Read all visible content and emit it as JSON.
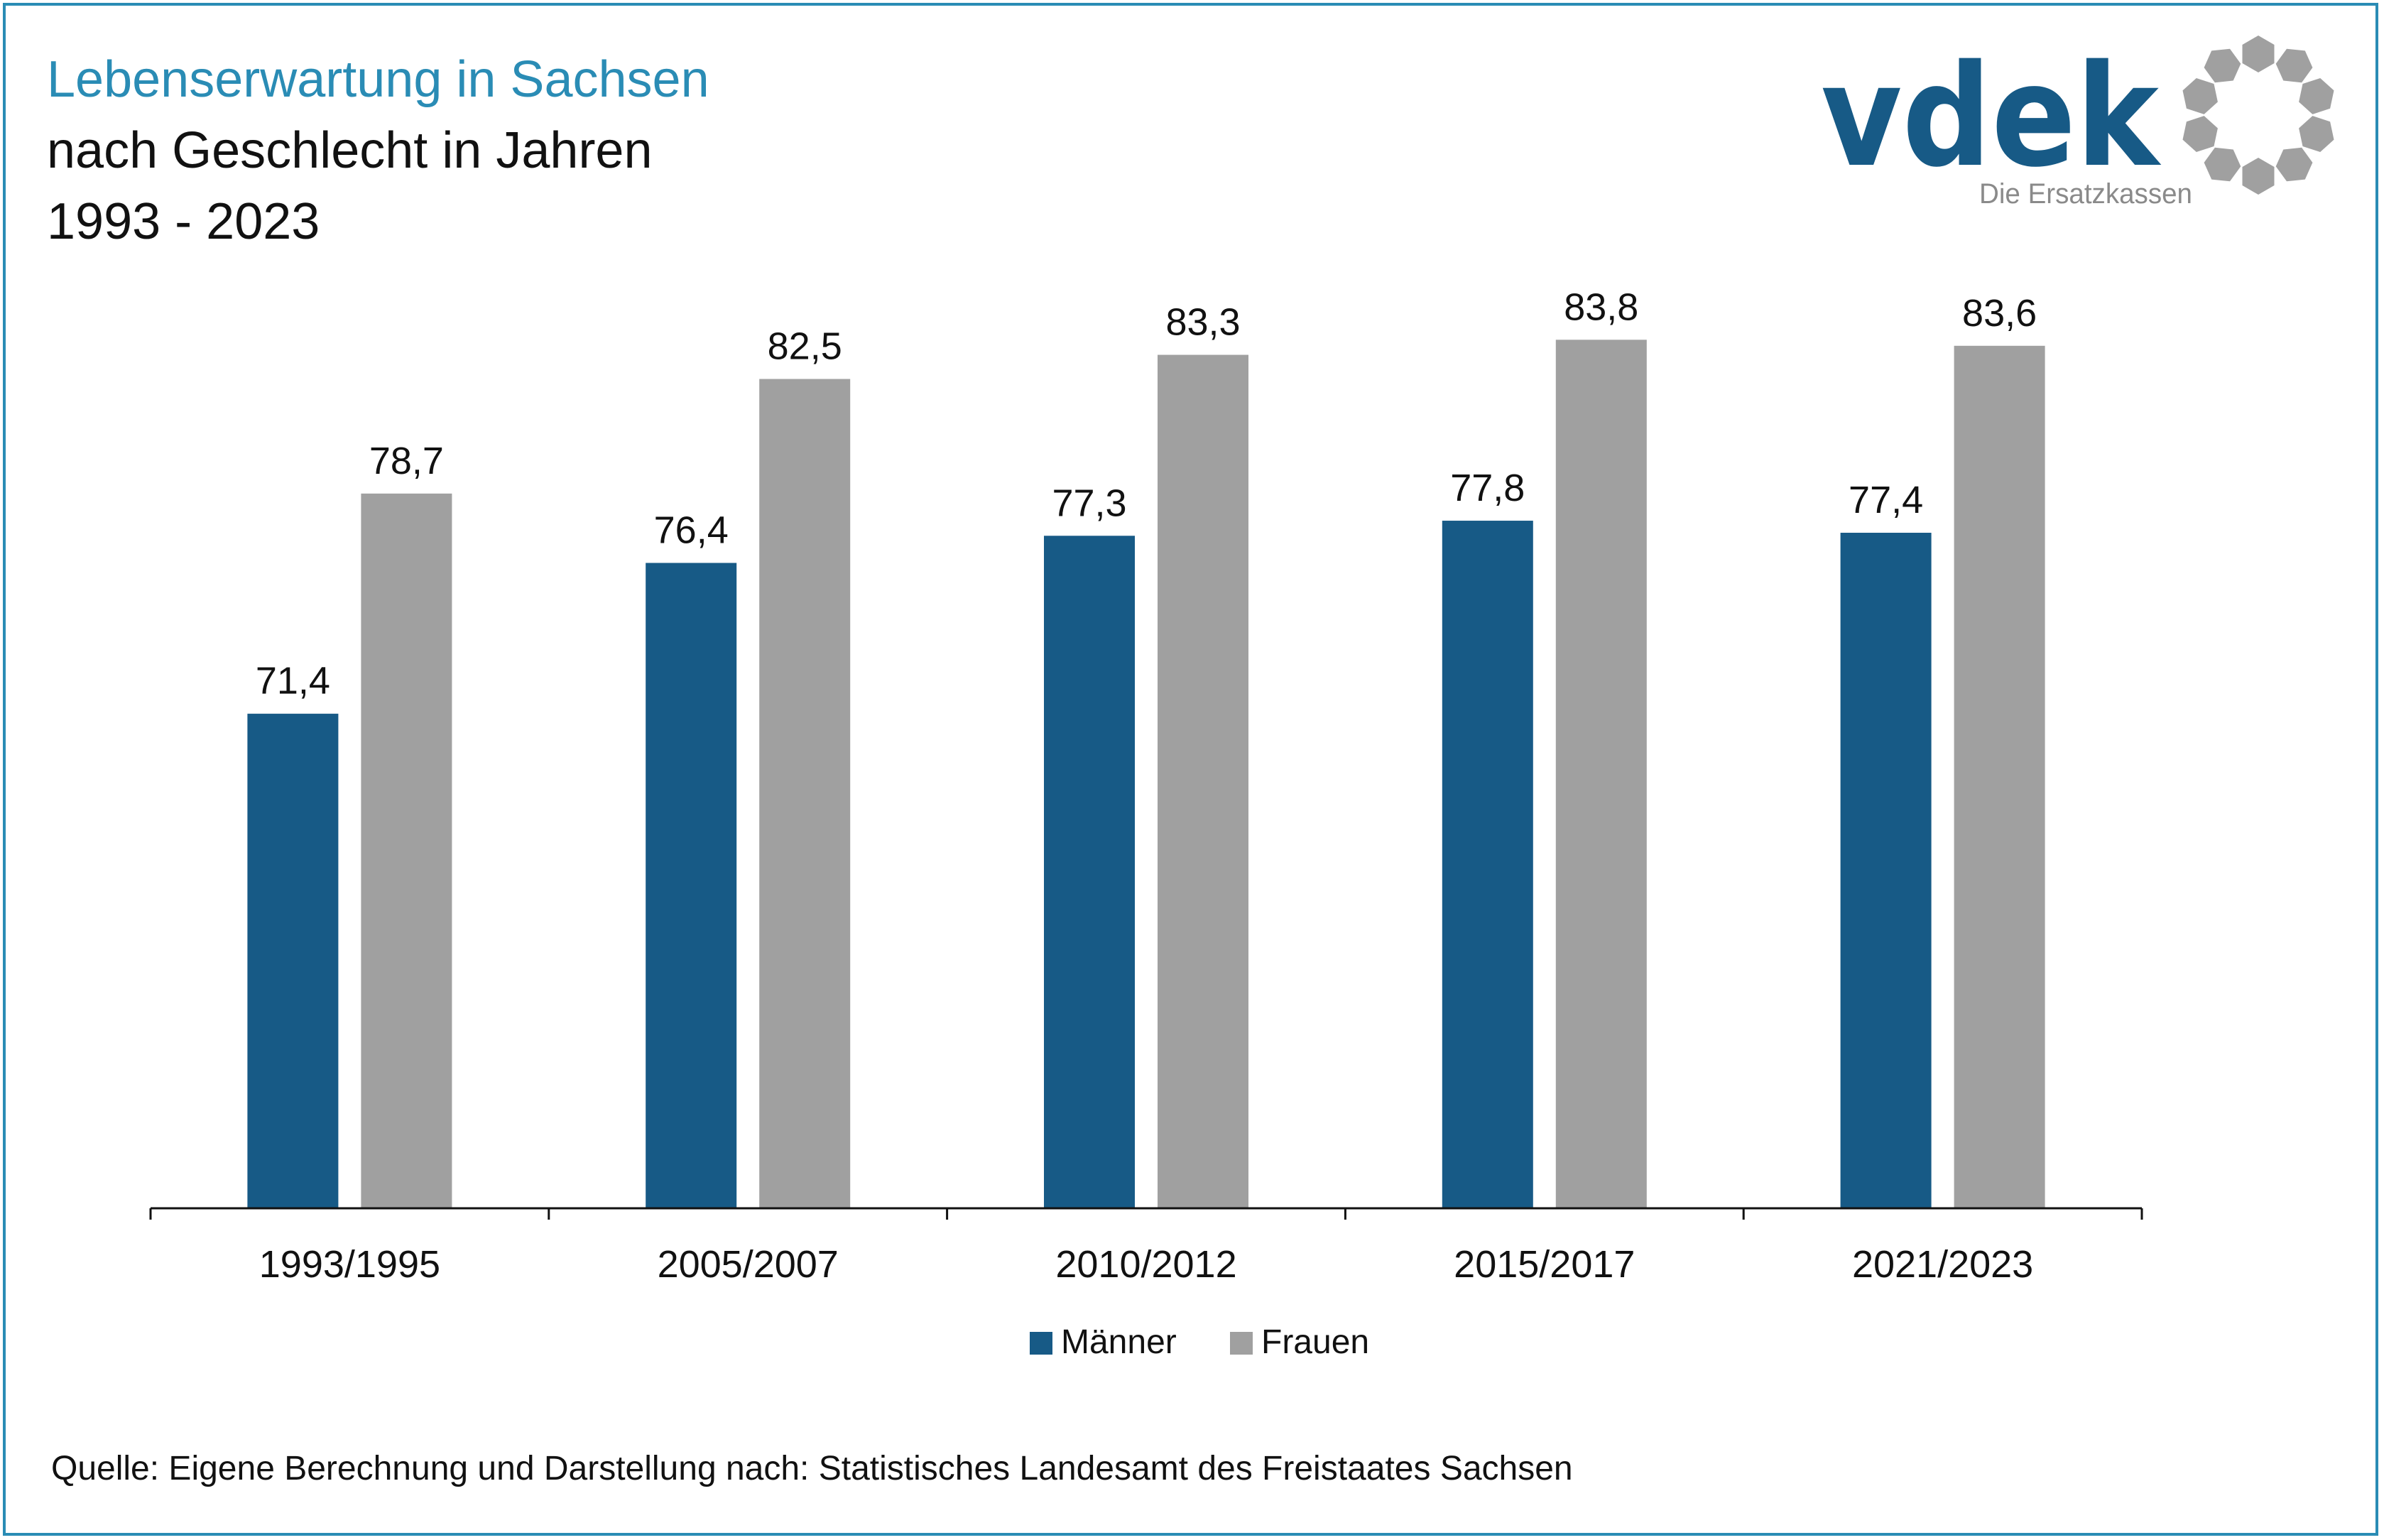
{
  "header": {
    "title": "Lebenserwartung in Sachsen",
    "subtitle_line1": "nach Geschlecht in Jahren",
    "subtitle_line2": "1993 - 2023"
  },
  "logo": {
    "wordmark": "vdek",
    "tagline": "Die Ersatzkassen",
    "brand_color": "#175a86",
    "ring_color": "#a0a0a0"
  },
  "chart_data": {
    "type": "bar",
    "categories": [
      "1993/1995",
      "2005/2007",
      "2010/2012",
      "2015/2017",
      "2021/2023"
    ],
    "series": [
      {
        "name": "Männer",
        "values": [
          71.4,
          76.4,
          77.3,
          77.8,
          77.4
        ],
        "color": "#175a86"
      },
      {
        "name": "Frauen",
        "values": [
          78.7,
          82.5,
          83.3,
          83.8,
          83.6
        ],
        "color": "#a0a0a0"
      }
    ],
    "data_labels": [
      [
        "71,4",
        "76,4",
        "77,3",
        "77,8",
        "77,4"
      ],
      [
        "78,7",
        "82,5",
        "83,3",
        "83,8",
        "83,6"
      ]
    ],
    "ylim": [
      55,
      88
    ],
    "grid": false,
    "legend": "bottom-center",
    "title": "",
    "xlabel": "",
    "ylabel": ""
  },
  "footer": {
    "source": "Quelle: Eigene Berechnung und Darstellung nach: Statistisches Landesamt des Freistaates Sachsen"
  }
}
